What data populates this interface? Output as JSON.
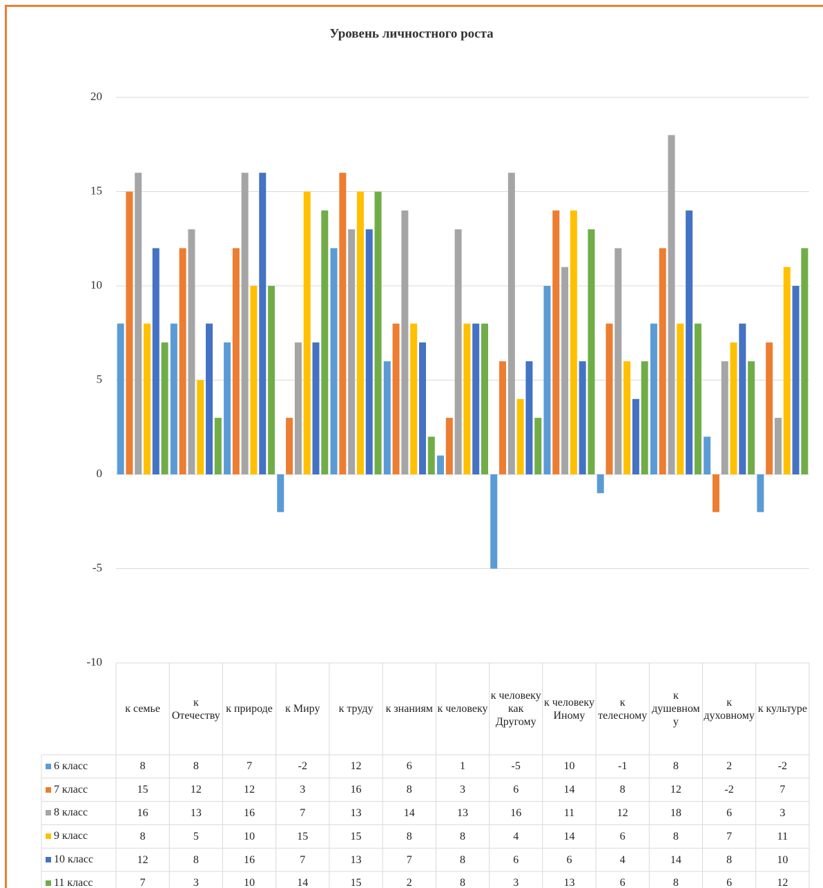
{
  "chart_data": {
    "type": "bar",
    "title": "Уровень личностного роста",
    "categories": [
      "к семье",
      "к Отечеству",
      "к природе",
      "к Миру",
      "к труду",
      "к знаниям",
      "к человеку",
      "к человеку как Другому",
      "к человеку Иному",
      "к телесному",
      "к душевному",
      "к духовному",
      "к культуре"
    ],
    "series": [
      {
        "name": "6 класс",
        "color": "#5b9bd5",
        "values": [
          8,
          8,
          7,
          -2,
          12,
          6,
          1,
          -5,
          10,
          -1,
          8,
          2,
          -2
        ]
      },
      {
        "name": "7 класс",
        "color": "#ed7d31",
        "values": [
          15,
          12,
          12,
          3,
          16,
          8,
          3,
          6,
          14,
          8,
          12,
          -2,
          7
        ]
      },
      {
        "name": "8 класс",
        "color": "#a5a5a5",
        "values": [
          16,
          13,
          16,
          7,
          13,
          14,
          13,
          16,
          11,
          12,
          18,
          6,
          3
        ]
      },
      {
        "name": "9 класс",
        "color": "#ffc000",
        "values": [
          8,
          5,
          10,
          15,
          15,
          8,
          8,
          4,
          14,
          6,
          8,
          7,
          11
        ]
      },
      {
        "name": "10 класс",
        "color": "#4472c4",
        "values": [
          12,
          8,
          16,
          7,
          13,
          7,
          8,
          6,
          6,
          4,
          14,
          8,
          10
        ]
      },
      {
        "name": "11 класс",
        "color": "#70ad47",
        "values": [
          7,
          3,
          10,
          14,
          15,
          2,
          8,
          3,
          13,
          6,
          8,
          6,
          12
        ]
      }
    ],
    "ylim": [
      -10,
      20
    ],
    "yticks": [
      -10,
      -5,
      0,
      5,
      10,
      15,
      20
    ],
    "grid": true
  }
}
